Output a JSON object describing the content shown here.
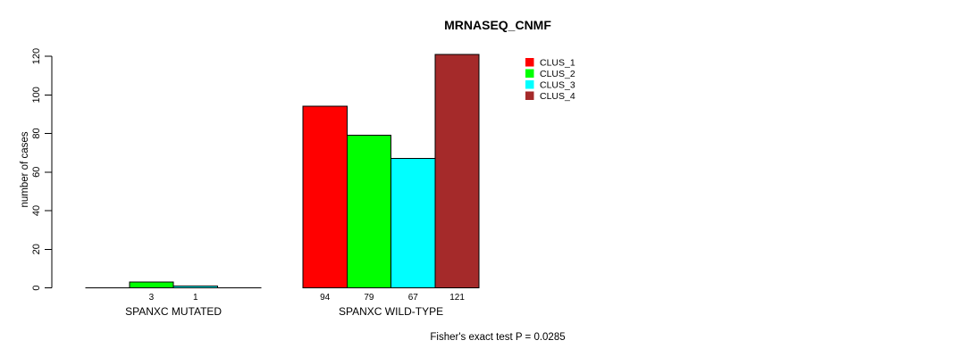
{
  "chart_data": {
    "type": "bar",
    "title": "MRNASEQ_CNMF",
    "ylabel": "number of cases",
    "xlabel": "",
    "ylim": [
      0,
      120
    ],
    "yticks": [
      0,
      20,
      40,
      60,
      80,
      100,
      120
    ],
    "grid": false,
    "legend_position": "top-right",
    "groups": [
      {
        "key": "mutated",
        "label": "SPANXC MUTATED"
      },
      {
        "key": "wild-type",
        "label": "SPANXC WILD-TYPE"
      }
    ],
    "series": [
      {
        "name": "CLUS_1",
        "color": "#FF0000",
        "values": [
          0,
          94
        ]
      },
      {
        "name": "CLUS_2",
        "color": "#00FF00",
        "values": [
          3,
          79
        ]
      },
      {
        "name": "CLUS_3",
        "color": "#00FFFF",
        "values": [
          1,
          67
        ]
      },
      {
        "name": "CLUS_4",
        "color": "#A52A2A",
        "values": [
          0,
          121
        ]
      }
    ],
    "bar_value_labels": [
      "3",
      "1",
      "94",
      "79",
      "67",
      "121"
    ],
    "annotation": "Fisher's exact test P = 0.0285",
    "axis_color": "#000000",
    "bar_border_color": "#000000"
  }
}
